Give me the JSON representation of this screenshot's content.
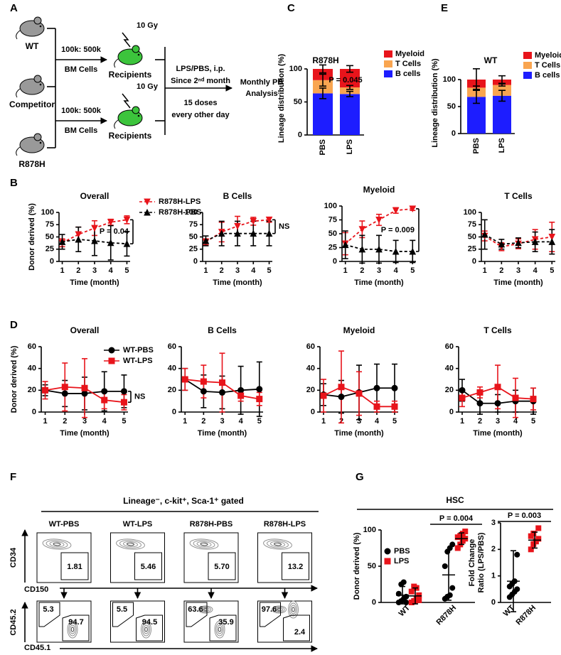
{
  "panel_labels": [
    "A",
    "B",
    "C",
    "D",
    "E",
    "F",
    "G"
  ],
  "schematic": {
    "mice": [
      "WT",
      "Competitor",
      "R878H"
    ],
    "transplant": [
      {
        "ratio": "100k: 500k",
        "cells": "BM Cells",
        "dose": "10 Gy",
        "recipients": "Recipients"
      },
      {
        "ratio": "100k: 500k",
        "cells": "BM Cells",
        "dose": "10 Gy",
        "recipients": "Recipients"
      }
    ],
    "treatment": [
      "LPS/PBS, i.p.",
      "Since 2ⁿᵈ month"
    ],
    "schedule": [
      "15 doses",
      "every other day"
    ],
    "readout": [
      "Monthly PB",
      "Analysis"
    ]
  },
  "chart_data": [
    {
      "type": "bar",
      "stacked": true,
      "title": "R878H",
      "ylabel": "Lineage distribution (%)",
      "categories": [
        "PBS",
        "LPS"
      ],
      "ylim": [
        0,
        100
      ],
      "yticks": [
        0,
        50,
        100
      ],
      "annotation": "P = 0.045",
      "series": [
        {
          "name": "B cells",
          "color": "#1d1dff",
          "values": [
            63,
            62
          ],
          "errors": [
            8,
            4
          ]
        },
        {
          "name": "T Cells",
          "color": "#f9a550",
          "values": [
            20,
            10
          ],
          "errors": [
            9,
            3
          ]
        },
        {
          "name": "Myeloid",
          "color": "#e8141b",
          "values": [
            17,
            28
          ],
          "errors": [
            6,
            5
          ]
        }
      ]
    },
    {
      "type": "bar",
      "stacked": true,
      "title": "WT",
      "ylabel": "Lineage distribution (%)",
      "categories": [
        "PBS",
        "LPS"
      ],
      "ylim": [
        0,
        100
      ],
      "yticks": [
        0,
        50,
        100
      ],
      "series": [
        {
          "name": "B cells",
          "color": "#1d1dff",
          "values": [
            68,
            70
          ],
          "errors": [
            12,
            10
          ]
        },
        {
          "name": "T Cells",
          "color": "#f9a550",
          "values": [
            17,
            20
          ],
          "errors": [
            3,
            2
          ]
        },
        {
          "name": "Myeloid",
          "color": "#e8141b",
          "values": [
            15,
            10
          ],
          "errors": [
            20,
            7
          ]
        }
      ]
    },
    {
      "type": "line",
      "title": "Overall",
      "xlabel": "Time (month)",
      "ylabel": "Donor derived (%)",
      "legend": true,
      "x": [
        1,
        2,
        3,
        4,
        5
      ],
      "xlim": [
        0.8,
        5.2
      ],
      "xticks": [
        1,
        2,
        3,
        4,
        5
      ],
      "ylim": [
        0,
        100
      ],
      "yticks": [
        0,
        25,
        50,
        75,
        100
      ],
      "annotation": "P = 0.04",
      "series": [
        {
          "name": "R878H-LPS",
          "color": "#e8141b",
          "marker": "triangle-down",
          "dashed": true,
          "values": [
            38,
            55,
            68,
            80,
            85
          ],
          "errors": [
            8,
            15,
            15,
            6,
            8
          ]
        },
        {
          "name": "R878H-PBS",
          "color": "#000000",
          "marker": "triangle-up",
          "dashed": true,
          "values": [
            40,
            45,
            42,
            38,
            36
          ],
          "errors": [
            15,
            25,
            30,
            35,
            25
          ]
        }
      ]
    },
    {
      "type": "line",
      "title": "B Cells",
      "xlabel": "Time (month)",
      "x": [
        1,
        2,
        3,
        4,
        5
      ],
      "xlim": [
        0.8,
        5.2
      ],
      "xticks": [
        1,
        2,
        3,
        4,
        5
      ],
      "ylim": [
        0,
        100
      ],
      "yticks": [
        0,
        25,
        50,
        75,
        100
      ],
      "annotation": "NS",
      "series": [
        {
          "color": "#e8141b",
          "marker": "triangle-down",
          "dashed": true,
          "values": [
            40,
            60,
            72,
            82,
            85
          ],
          "errors": [
            6,
            20,
            20,
            8,
            5
          ]
        },
        {
          "color": "#000000",
          "marker": "triangle-up",
          "dashed": true,
          "values": [
            42,
            57,
            57,
            57,
            57
          ],
          "errors": [
            10,
            25,
            25,
            25,
            25
          ]
        }
      ]
    },
    {
      "type": "line",
      "title": "Myeloid",
      "xlabel": "Time (month)",
      "x": [
        1,
        2,
        3,
        4,
        5
      ],
      "xlim": [
        0.8,
        5.2
      ],
      "xticks": [
        1,
        2,
        3,
        4,
        5
      ],
      "ylim": [
        0,
        100
      ],
      "yticks": [
        0,
        25,
        50,
        75,
        100
      ],
      "annotation": "P = 0.009",
      "series": [
        {
          "color": "#e8141b",
          "marker": "triangle-down",
          "dashed": true,
          "values": [
            32,
            58,
            75,
            92,
            95
          ],
          "errors": [
            20,
            15,
            10,
            5,
            3
          ]
        },
        {
          "color": "#000000",
          "marker": "triangle-up",
          "dashed": true,
          "values": [
            30,
            22,
            22,
            18,
            18
          ],
          "errors": [
            25,
            25,
            25,
            20,
            20
          ]
        }
      ]
    },
    {
      "type": "line",
      "title": "T Cells",
      "xlabel": "Time (month)",
      "x": [
        1,
        2,
        3,
        4,
        5
      ],
      "xlim": [
        0.8,
        5.2
      ],
      "xticks": [
        1,
        2,
        3,
        4,
        5
      ],
      "ylim": [
        0,
        100
      ],
      "yticks": [
        0,
        25,
        50,
        75,
        100
      ],
      "series": [
        {
          "color": "#e8141b",
          "marker": "triangle-down",
          "dashed": true,
          "values": [
            52,
            30,
            36,
            45,
            50
          ],
          "errors": [
            10,
            8,
            10,
            20,
            30
          ]
        },
        {
          "color": "#000000",
          "marker": "triangle-up",
          "dashed": true,
          "values": [
            55,
            35,
            38,
            40,
            40
          ],
          "errors": [
            30,
            10,
            10,
            20,
            25
          ]
        }
      ]
    },
    {
      "type": "line",
      "title": "Overall",
      "xlabel": "Time (month)",
      "ylabel": "Donor derived (%)",
      "legend": true,
      "x": [
        1,
        2,
        3,
        4,
        5
      ],
      "xlim": [
        0.8,
        5.2
      ],
      "xticks": [
        1,
        2,
        3,
        4,
        5
      ],
      "ylim": [
        0,
        60
      ],
      "yticks": [
        0,
        20,
        40,
        60
      ],
      "annotation": "NS",
      "series": [
        {
          "name": "WT-PBS",
          "color": "#000000",
          "marker": "circle",
          "values": [
            20,
            17,
            17,
            19,
            19
          ],
          "errors": [
            5,
            12,
            15,
            18,
            15
          ]
        },
        {
          "name": "WT-LPS",
          "color": "#e8141b",
          "marker": "square",
          "values": [
            20,
            23,
            22,
            11,
            9
          ],
          "errors": [
            8,
            22,
            27,
            8,
            7
          ]
        }
      ]
    },
    {
      "type": "line",
      "title": "B Cells",
      "xlabel": "Time (month)",
      "x": [
        1,
        2,
        3,
        4,
        5
      ],
      "xlim": [
        0.8,
        5.2
      ],
      "xticks": [
        1,
        2,
        3,
        4,
        5
      ],
      "ylim": [
        0,
        60
      ],
      "yticks": [
        0,
        20,
        40,
        60
      ],
      "series": [
        {
          "color": "#000000",
          "marker": "circle",
          "values": [
            30,
            19,
            18,
            20,
            21
          ],
          "errors": [
            10,
            15,
            15,
            22,
            25
          ]
        },
        {
          "color": "#e8141b",
          "marker": "square",
          "values": [
            30,
            28,
            27,
            15,
            12
          ],
          "errors": [
            10,
            15,
            27,
            5,
            6
          ]
        }
      ]
    },
    {
      "type": "line",
      "title": "Myeloid",
      "xlabel": "Time (month)",
      "x": [
        1,
        2,
        3,
        4,
        5
      ],
      "xlim": [
        0.8,
        5.2
      ],
      "xticks": [
        1,
        2,
        3,
        4,
        5
      ],
      "ylim": [
        0,
        60
      ],
      "yticks": [
        0,
        20,
        40,
        60
      ],
      "series": [
        {
          "color": "#000000",
          "marker": "circle",
          "values": [
            16,
            14,
            18,
            22,
            22
          ],
          "errors": [
            10,
            15,
            25,
            22,
            22
          ]
        },
        {
          "color": "#e8141b",
          "marker": "square",
          "values": [
            15,
            23,
            17,
            5,
            5
          ],
          "errors": [
            15,
            33,
            20,
            5,
            5
          ]
        }
      ]
    },
    {
      "type": "line",
      "title": "T Cells",
      "xlabel": "Time (month)",
      "x": [
        1,
        2,
        3,
        4,
        5
      ],
      "xlim": [
        0.8,
        5.2
      ],
      "xticks": [
        1,
        2,
        3,
        4,
        5
      ],
      "ylim": [
        0,
        60
      ],
      "yticks": [
        0,
        20,
        40,
        60
      ],
      "series": [
        {
          "color": "#000000",
          "marker": "circle",
          "values": [
            20,
            8,
            8,
            10,
            10
          ],
          "errors": [
            10,
            10,
            8,
            10,
            12
          ]
        },
        {
          "color": "#e8141b",
          "marker": "square",
          "values": [
            13,
            18,
            23,
            13,
            12
          ],
          "errors": [
            8,
            5,
            20,
            18,
            10
          ]
        }
      ]
    },
    {
      "type": "dotplot",
      "title": "HSC",
      "ylabel": "Donor derived (%)",
      "categories": [
        "WT",
        "R878H"
      ],
      "legend": true,
      "ylim": [
        0,
        100
      ],
      "yticks": [
        0,
        50,
        100
      ],
      "annotation": "P = 0.004",
      "series": [
        {
          "name": "PBS",
          "color": "#000000",
          "marker": "circle",
          "values": [
            [
              0,
              2,
              5,
              8,
              12,
              25,
              28,
              0
            ],
            [
              5,
              8,
              10,
              20,
              50,
              70,
              75,
              80
            ]
          ],
          "means": [
            10,
            38
          ],
          "errors": [
            12,
            35
          ]
        },
        {
          "name": "LPS",
          "color": "#e8141b",
          "marker": "square",
          "values": [
            [
              0,
              2,
              5,
              10,
              15,
              22,
              20,
              3
            ],
            [
              75,
              80,
              85,
              88,
              90,
              92,
              95,
              98
            ]
          ],
          "means": [
            9,
            88
          ],
          "errors": [
            11,
            8
          ]
        }
      ]
    },
    {
      "type": "dotplot",
      "ylabel": [
        "Fold Change",
        "Ratio (LPS/PBS)"
      ],
      "categories": [
        "WT",
        "R878H"
      ],
      "ylim": [
        0,
        3
      ],
      "yticks": [
        0,
        1,
        2,
        3
      ],
      "annotation": "P = 0.003",
      "series": [
        {
          "color": "#000000",
          "marker": "circle",
          "values": [
            [
              0.2,
              0.3,
              0.4,
              0.5,
              0.6,
              0.7,
              0.8,
              1.8
            ],
            null
          ],
          "means": [
            0.8,
            null
          ],
          "errors": [
            1.15,
            null
          ]
        },
        {
          "color": "#e8141b",
          "marker": "square",
          "values": [
            null,
            [
              2.0,
              2.2,
              2.3,
              2.4,
              2.5,
              2.6,
              2.3,
              2.8
            ]
          ],
          "means": [
            null,
            2.35
          ],
          "errors": [
            null,
            0.3
          ]
        }
      ]
    }
  ],
  "flow": {
    "header": "Lineage⁻, c-kit⁺, Sca-1⁺ gated",
    "columns": [
      "WT-PBS",
      "WT-LPS",
      "R878H-PBS",
      "R878H-LPS"
    ],
    "gates_top": [
      "1.81",
      "5.46",
      "5.70",
      "13.2"
    ],
    "gates_bottom": [
      [
        "5.3",
        "94.7"
      ],
      [
        "5.5",
        "94.5"
      ],
      [
        "63.6",
        "35.9"
      ],
      [
        "97.6",
        "2.4"
      ]
    ],
    "axes": {
      "top_y": "CD34",
      "top_x": "CD150",
      "bottom_y": "CD45.2",
      "bottom_x": "CD45.1"
    }
  }
}
